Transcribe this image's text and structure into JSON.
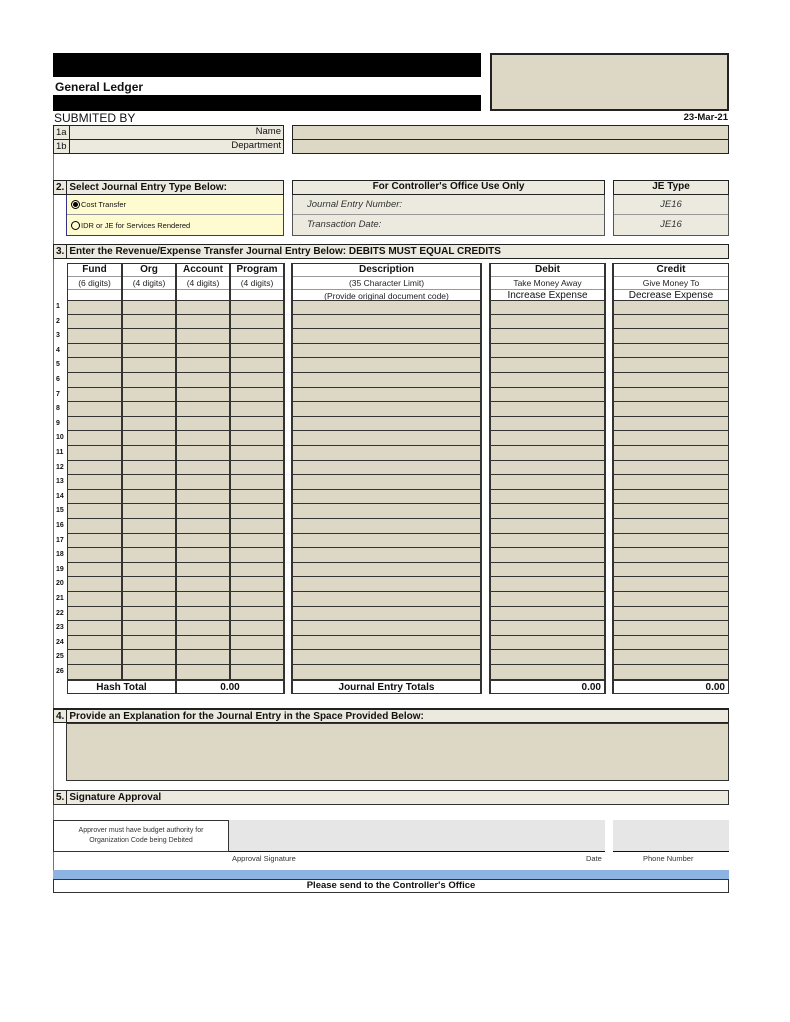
{
  "header": {
    "title": "General Ledger",
    "submitted_by": "SUBMITED BY",
    "date": "23-Mar-21"
  },
  "submitter": {
    "name_num": "1a",
    "name_label": "Name",
    "dept_num": "1b",
    "dept_label": "Department",
    "name_value": "",
    "dept_value": ""
  },
  "section2": {
    "num": "2.",
    "title": "Select Journal Entry Type Below:",
    "options": [
      {
        "label": "Cost Transfer",
        "selected": true
      },
      {
        "label": "IDR or JE for Services Rendered",
        "selected": false
      }
    ]
  },
  "controller": {
    "title": "For Controller's Office Use Only",
    "je_number_label": "Journal Entry Number:",
    "transaction_date_label": "Transaction Date:"
  },
  "je_type": {
    "title": "JE Type",
    "values": [
      "JE16",
      "JE16"
    ]
  },
  "section3": {
    "num": "3.",
    "title": "Enter the Revenue/Expense Transfer Journal Entry Below: DEBITS MUST EQUAL CREDITS"
  },
  "table": {
    "columns": [
      {
        "label": "Fund",
        "sub": "(6 digits)",
        "sub2": ""
      },
      {
        "label": "Org",
        "sub": "(4 digits)",
        "sub2": ""
      },
      {
        "label": "Account",
        "sub": "(4 digits)",
        "sub2": ""
      },
      {
        "label": "Program",
        "sub": "(4 digits)",
        "sub2": ""
      },
      {
        "label": "Description",
        "sub": "(35 Character Limit)",
        "sub2": "(Provide original document code)"
      },
      {
        "label": "Debit",
        "sub": "Take Money Away",
        "sub2": "Increase Expense"
      },
      {
        "label": "Credit",
        "sub": "Give Money To",
        "sub2": "Decrease Expense"
      }
    ],
    "row_numbers": [
      "1",
      "2",
      "3",
      "4",
      "5",
      "6",
      "7",
      "8",
      "9",
      "10",
      "11",
      "12",
      "13",
      "14",
      "15",
      "16",
      "17",
      "18",
      "19",
      "20",
      "21",
      "22",
      "23",
      "24",
      "25",
      "26"
    ],
    "totals": {
      "hash_label": "Hash Total",
      "hash_value": "0.00",
      "je_totals_label": "Journal Entry Totals",
      "debit_total": "0.00",
      "credit_total": "0.00"
    }
  },
  "section4": {
    "num": "4.",
    "title": "Provide an Explanation for the Journal Entry in the Space Provided Below:",
    "value": ""
  },
  "section5": {
    "num": "5.",
    "title": "Signature Approval",
    "note": "Approver must have budget authority for Organization Code being Debited",
    "signature_label": "Approval Signature",
    "date_label": "Date",
    "phone_label": "Phone Number"
  },
  "footer": {
    "text": "Please send to the Controller's Office"
  },
  "colors": {
    "field": "#ddd8c5",
    "option_bg": "#fffbd0",
    "footer_bar": "#8db3e2"
  }
}
